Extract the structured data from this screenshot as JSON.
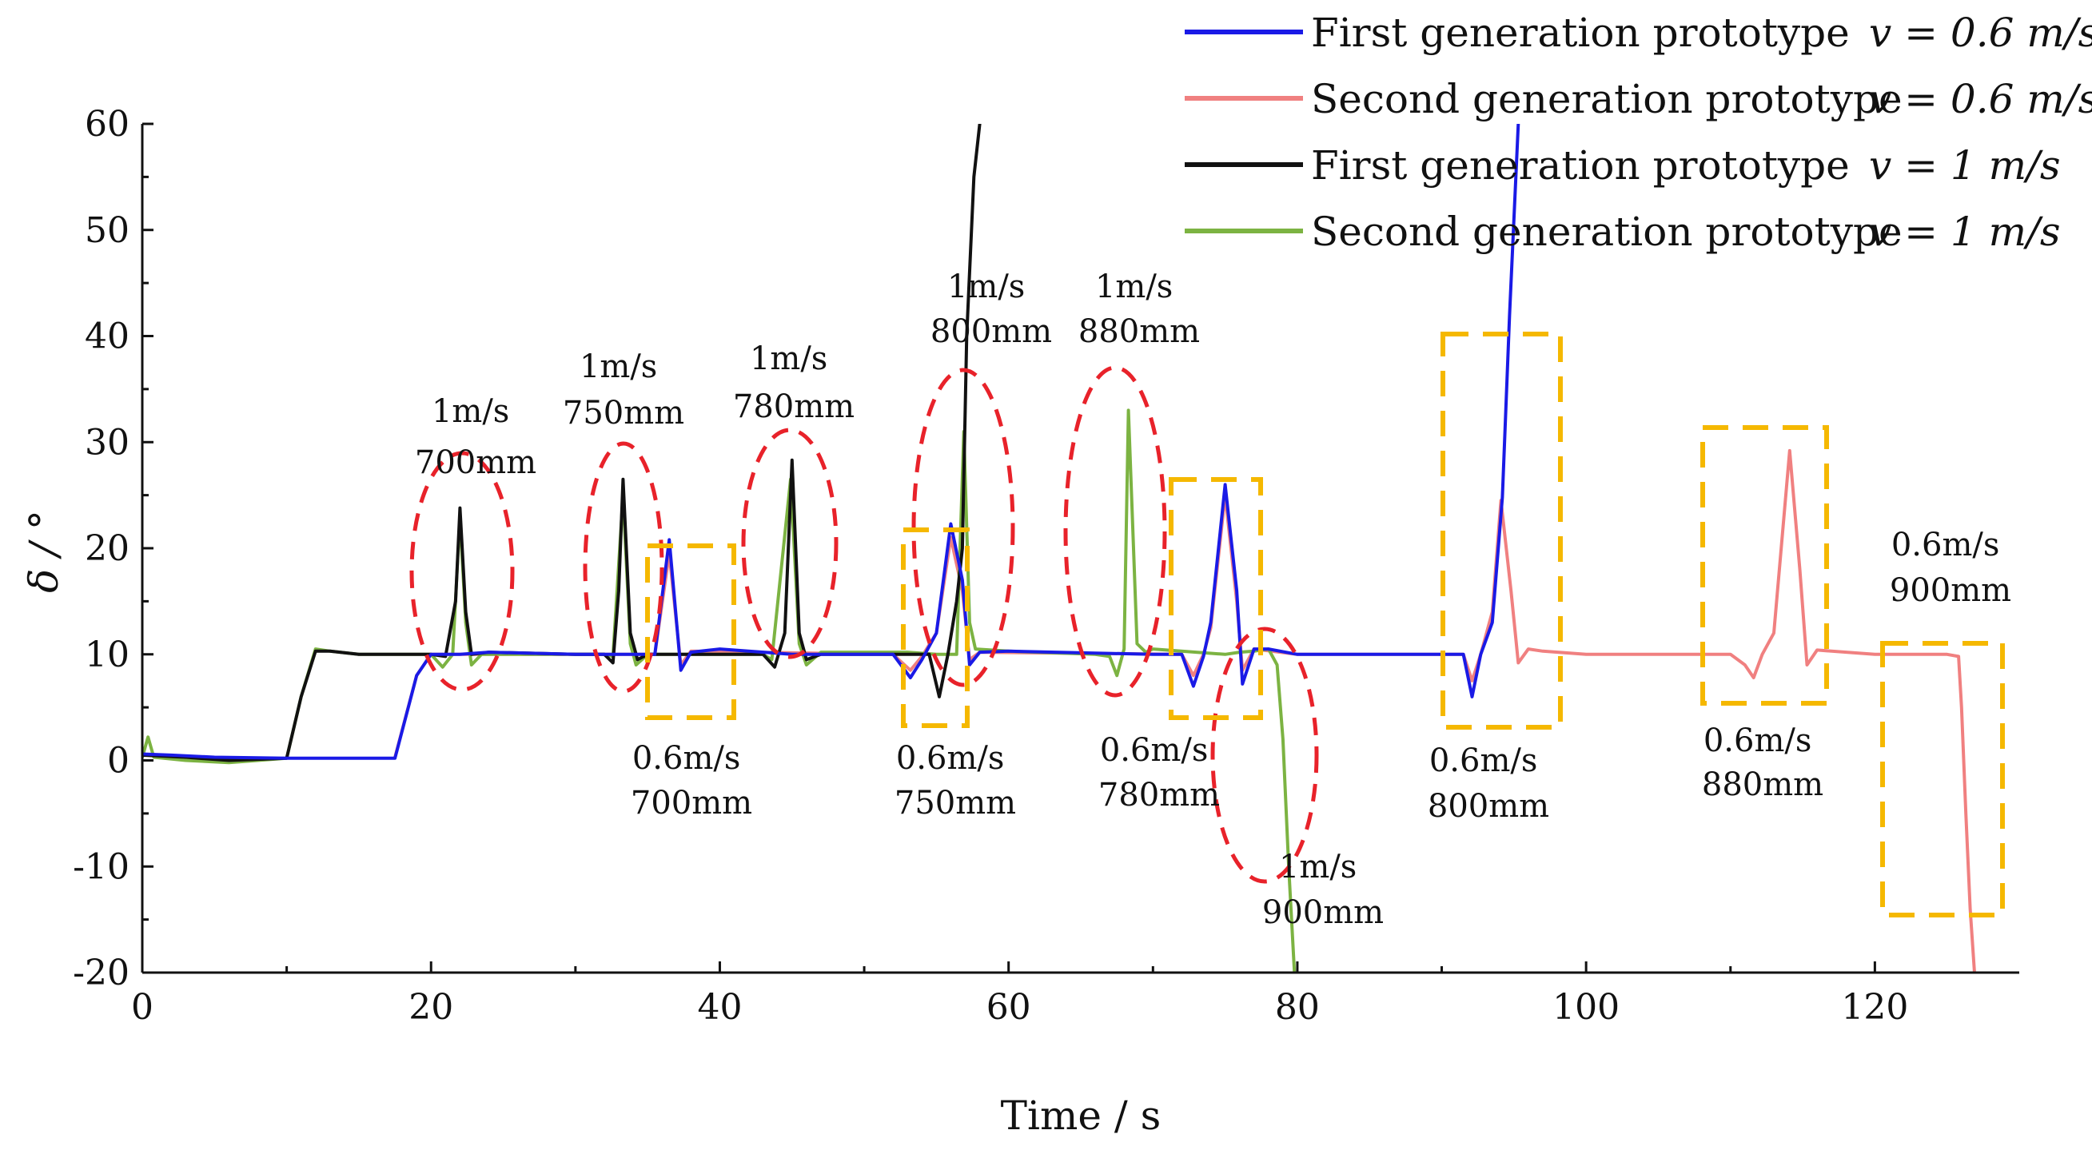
{
  "chart_data": {
    "type": "line",
    "title": "",
    "xlabel": "Time / s",
    "ylabel": "δ / °",
    "xlim": [
      0,
      130
    ],
    "ylim": [
      -20,
      60
    ],
    "x_ticks": [
      0,
      20,
      40,
      60,
      80,
      100,
      120
    ],
    "y_ticks": [
      -20,
      -10,
      0,
      10,
      20,
      30,
      40,
      50,
      60
    ],
    "grid": false,
    "legend_position": "top-right",
    "colors": {
      "first_06": "#1a1ae6",
      "second_06": "#f08080",
      "first_1": "#111111",
      "second_1": "#7cb342",
      "ellipse": "#e8222a",
      "box": "#f5b800"
    },
    "series": [
      {
        "name": "First generation prototype",
        "speed_label": "v = 0.6 m/s",
        "color": "#1a1ae6",
        "points": [
          [
            0,
            0.6
          ],
          [
            2,
            0.5
          ],
          [
            5,
            0.3
          ],
          [
            10,
            0.2
          ],
          [
            17.5,
            0.2
          ],
          [
            19,
            8
          ],
          [
            20,
            10
          ],
          [
            22,
            10
          ],
          [
            24,
            10.2
          ],
          [
            30,
            10
          ],
          [
            34,
            10
          ],
          [
            35.5,
            10
          ],
          [
            36.5,
            20.8
          ],
          [
            37.3,
            8.5
          ],
          [
            38,
            10.2
          ],
          [
            40,
            10.5
          ],
          [
            45,
            10
          ],
          [
            52,
            10
          ],
          [
            53.2,
            7.8
          ],
          [
            54,
            9.5
          ],
          [
            55,
            12
          ],
          [
            56,
            22.3
          ],
          [
            56.8,
            17
          ],
          [
            57.3,
            9
          ],
          [
            58,
            10.2
          ],
          [
            60,
            10.3
          ],
          [
            70,
            10
          ],
          [
            72,
            10
          ],
          [
            72.8,
            7
          ],
          [
            73.5,
            9.8
          ],
          [
            74,
            13
          ],
          [
            75,
            26
          ],
          [
            75.8,
            16
          ],
          [
            76.2,
            7.2
          ],
          [
            77,
            10.5
          ],
          [
            78,
            10.5
          ],
          [
            80,
            10
          ],
          [
            90,
            10
          ],
          [
            91.5,
            10
          ],
          [
            92.1,
            6
          ],
          [
            92.7,
            10
          ],
          [
            93.5,
            13
          ],
          [
            94.2,
            24.8
          ],
          [
            94.7,
            42
          ],
          [
            95.3,
            60
          ]
        ]
      },
      {
        "name": "Second generation prototype",
        "speed_label": "v = 0.6 m/s",
        "color": "#f08080",
        "points": [
          [
            17.5,
            0.3
          ],
          [
            19,
            8
          ],
          [
            20,
            10
          ],
          [
            30,
            10
          ],
          [
            35.5,
            10
          ],
          [
            36.5,
            19.5
          ],
          [
            37.3,
            9
          ],
          [
            38,
            10.3
          ],
          [
            52,
            10
          ],
          [
            53.2,
            8.5
          ],
          [
            54,
            9.8
          ],
          [
            55,
            12
          ],
          [
            56,
            21
          ],
          [
            56.8,
            16
          ],
          [
            57.3,
            9.5
          ],
          [
            58,
            10.2
          ],
          [
            72,
            10
          ],
          [
            72.8,
            8
          ],
          [
            73.5,
            10
          ],
          [
            74,
            12.5
          ],
          [
            75,
            25
          ],
          [
            75.8,
            15
          ],
          [
            76.2,
            8.5
          ],
          [
            77,
            10.5
          ],
          [
            80,
            10
          ],
          [
            91.5,
            10
          ],
          [
            92.1,
            7.5
          ],
          [
            92.7,
            10
          ],
          [
            93.5,
            14
          ],
          [
            94.1,
            24.5
          ],
          [
            94.8,
            16
          ],
          [
            95.3,
            9.2
          ],
          [
            96,
            10.5
          ],
          [
            97,
            10.3
          ],
          [
            100,
            10
          ],
          [
            110,
            10
          ],
          [
            111,
            9
          ],
          [
            111.6,
            7.8
          ],
          [
            112.2,
            10
          ],
          [
            113,
            12
          ],
          [
            114.1,
            29.2
          ],
          [
            114.8,
            18
          ],
          [
            115.3,
            9
          ],
          [
            116,
            10.4
          ],
          [
            120,
            10
          ],
          [
            125,
            10
          ],
          [
            125.8,
            9.8
          ],
          [
            126,
            5
          ],
          [
            126.3,
            -5
          ],
          [
            126.6,
            -14
          ],
          [
            126.9,
            -20
          ]
        ]
      },
      {
        "name": "First generation prototype",
        "speed_label": "v = 1 m/s",
        "color": "#111111",
        "points": [
          [
            0,
            0.5
          ],
          [
            3,
            0.3
          ],
          [
            6,
            0
          ],
          [
            10,
            0.2
          ],
          [
            11,
            6
          ],
          [
            12,
            10.3
          ],
          [
            13,
            10.3
          ],
          [
            15,
            10
          ],
          [
            20,
            10
          ],
          [
            21,
            9.8
          ],
          [
            21.7,
            15
          ],
          [
            22,
            23.8
          ],
          [
            22.4,
            14
          ],
          [
            22.8,
            10
          ],
          [
            24,
            10.2
          ],
          [
            30,
            10
          ],
          [
            32,
            10
          ],
          [
            32.6,
            9.2
          ],
          [
            33,
            16
          ],
          [
            33.3,
            26.5
          ],
          [
            33.8,
            12
          ],
          [
            34.3,
            9.5
          ],
          [
            35,
            10
          ],
          [
            40,
            10
          ],
          [
            43,
            10
          ],
          [
            43.8,
            8.8
          ],
          [
            44.5,
            12
          ],
          [
            45,
            28.3
          ],
          [
            45.5,
            12
          ],
          [
            46,
            9.5
          ],
          [
            47,
            10
          ],
          [
            52,
            10
          ],
          [
            54.5,
            10
          ],
          [
            55.2,
            6
          ],
          [
            55.8,
            10
          ],
          [
            56.4,
            15
          ],
          [
            56.8,
            20
          ],
          [
            57.1,
            40
          ],
          [
            57.6,
            55
          ],
          [
            58,
            60
          ]
        ]
      },
      {
        "name": "Second generation prototype",
        "speed_label": "v = 1 m/s",
        "color": "#7cb342",
        "points": [
          [
            0,
            0.3
          ],
          [
            0.4,
            2.2
          ],
          [
            0.8,
            0.3
          ],
          [
            3,
            0
          ],
          [
            6,
            -0.2
          ],
          [
            10,
            0.2
          ],
          [
            11,
            6
          ],
          [
            12,
            10.5
          ],
          [
            13,
            10.3
          ],
          [
            15,
            10
          ],
          [
            20,
            10
          ],
          [
            20.8,
            8.8
          ],
          [
            21.5,
            10
          ],
          [
            22,
            23
          ],
          [
            22.4,
            13
          ],
          [
            22.8,
            9
          ],
          [
            23.5,
            10
          ],
          [
            30,
            10
          ],
          [
            32,
            10
          ],
          [
            32.6,
            9.8
          ],
          [
            33.3,
            25
          ],
          [
            33.8,
            11
          ],
          [
            34.2,
            9
          ],
          [
            35,
            10
          ],
          [
            40,
            10
          ],
          [
            43,
            10
          ],
          [
            43.6,
            9.5
          ],
          [
            44.9,
            26.5
          ],
          [
            45.5,
            11
          ],
          [
            46,
            9
          ],
          [
            47,
            10.2
          ],
          [
            53,
            10.2
          ],
          [
            55,
            10
          ],
          [
            56.4,
            10
          ],
          [
            56.9,
            31
          ],
          [
            57.3,
            13
          ],
          [
            57.7,
            10.5
          ],
          [
            60,
            10.3
          ],
          [
            66,
            10
          ],
          [
            67,
            9.8
          ],
          [
            67.5,
            8
          ],
          [
            68,
            10.5
          ],
          [
            68.3,
            33
          ],
          [
            68.9,
            11
          ],
          [
            69.5,
            10.2
          ],
          [
            70,
            10.5
          ],
          [
            75,
            10
          ],
          [
            76,
            10.2
          ],
          [
            77,
            10.3
          ],
          [
            78,
            10.5
          ],
          [
            78.6,
            9
          ],
          [
            79,
            2
          ],
          [
            79.4,
            -10
          ],
          [
            79.8,
            -20
          ]
        ]
      }
    ],
    "annotations": [
      {
        "line1": "1m/s",
        "line2": "700mm"
      },
      {
        "line1": "1m/s",
        "line2": "750mm"
      },
      {
        "line1": "1m/s",
        "line2": "780mm"
      },
      {
        "line1": "1m/s",
        "line2": "800mm"
      },
      {
        "line1": "1m/s",
        "line2": "880mm"
      },
      {
        "line1": "1m/s",
        "line2": "900mm"
      },
      {
        "line1": "0.6m/s",
        "line2": "700mm"
      },
      {
        "line1": "0.6m/s",
        "line2": "750mm"
      },
      {
        "line1": "0.6m/s",
        "line2": "780mm"
      },
      {
        "line1": "0.6m/s",
        "line2": "800mm"
      },
      {
        "line1": "0.6m/s",
        "line2": "880mm"
      },
      {
        "line1": "0.6m/s",
        "line2": "900mm"
      }
    ]
  }
}
